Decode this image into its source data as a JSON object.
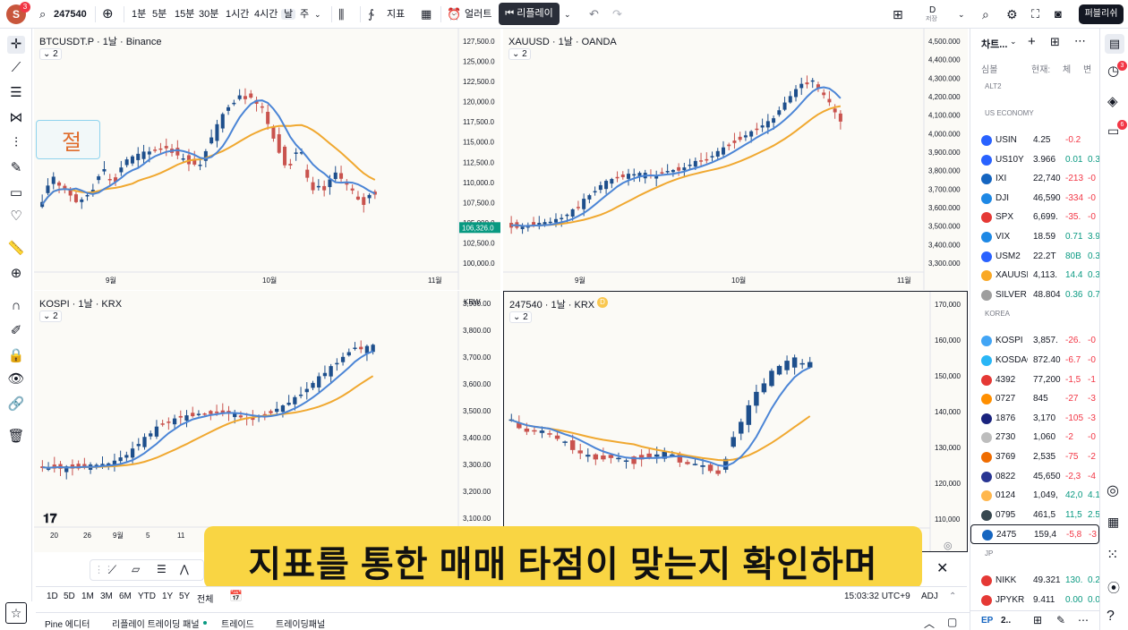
{
  "topbar": {
    "avatar_letter": "S",
    "avatar_badge": "3",
    "symbol": "247540",
    "intervals": [
      "1분",
      "5분",
      "15분",
      "30분",
      "1시간",
      "4시간",
      "날",
      "주"
    ],
    "active_interval": "날",
    "indicators_label": "지표",
    "alert_label": "얼러트",
    "replay_label": "리플레이",
    "layout_label": "D",
    "layout_sub": "저장",
    "publish_label": "퍼블리쉬"
  },
  "panes": [
    {
      "title": "BTCUSDT.P · 1날 · Binance",
      "badge": "2",
      "price_labels": [
        "127,500.0",
        "125,000.0",
        "122,500.0",
        "120,000.0",
        "117,500.0",
        "115,000.0",
        "112,500.0",
        "110,000.0",
        "107,500.0",
        "105,000.0",
        "102,500.0",
        "100,000.0"
      ],
      "last_price": "106,326.0",
      "time_labels": [
        "9월",
        "10월",
        "11월"
      ],
      "overlay_text": "절"
    },
    {
      "title": "XAUUSD · 1날 · OANDA",
      "badge": "2",
      "price_labels": [
        "4,500.000",
        "4,400.000",
        "4,300.000",
        "4,200.000",
        "4,100.000",
        "4,000.000",
        "3,900.000",
        "3,800.000",
        "3,700.000",
        "3,600.000",
        "3,500.000",
        "3,400.000",
        "3,300.000"
      ],
      "time_labels": [
        "9월",
        "10월",
        "11월"
      ]
    },
    {
      "title": "KOSPI · 1날 · KRX",
      "badge": "2",
      "currency": "KRW",
      "price_labels": [
        "3,900.00",
        "3,800.00",
        "3,700.00",
        "3,600.00",
        "3,500.00",
        "3,400.00",
        "3,300.00",
        "3,200.00",
        "3,100.00"
      ],
      "time_labels": [
        "20",
        "26",
        "9월",
        "5",
        "11"
      ]
    },
    {
      "title": "247540 · 1날 · KRX",
      "badge": "2",
      "price_labels": [
        "170,000",
        "160,000",
        "150,000",
        "140,000",
        "130,000",
        "120,000",
        "110,000"
      ]
    }
  ],
  "caption": "지표를 통한 매매 타점이 맞는지 확인하며",
  "range_bar": {
    "ranges": [
      "1D",
      "5D",
      "1M",
      "3M",
      "6M",
      "YTD",
      "1Y",
      "5Y",
      "전체"
    ],
    "clock": "15:03:32 UTC+9",
    "adj": "ADJ"
  },
  "panel_tabs": [
    "Pine 에디터",
    "리플레이 트레이딩 패널",
    "트레이드",
    "트레이딩패널"
  ],
  "watchlist": {
    "title": "차트...",
    "col_symbol": "심볼",
    "col_price": "현재:",
    "col_chg": "체",
    "col_pct": "변",
    "sections": [
      {
        "name": "ALT2",
        "rows": []
      },
      {
        "name": "US ECONOMY",
        "rows": [
          {
            "sym": "USIN",
            "price": "4.25",
            "chg": "-0.2",
            "pct": "",
            "color": "#2962ff",
            "dir": "down"
          },
          {
            "sym": "US10Y",
            "price": "3.966",
            "chg": "0.01",
            "pct": "0.3",
            "color": "#2962ff",
            "dir": "up"
          },
          {
            "sym": "IXI",
            "price": "22,740",
            "chg": "-213",
            "pct": "-0",
            "color": "#1565c0",
            "dir": "down"
          },
          {
            "sym": "DJI",
            "price": "46,590",
            "chg": "-334",
            "pct": "-0",
            "color": "#1e88e5",
            "dir": "down"
          },
          {
            "sym": "SPX",
            "price": "6,699.",
            "chg": "-35.",
            "pct": "-0",
            "color": "#e53935",
            "dir": "down"
          },
          {
            "sym": "VIX",
            "price": "18.59",
            "chg": "0.71",
            "pct": "3.9",
            "color": "#1e88e5",
            "dir": "up"
          },
          {
            "sym": "USM2",
            "price": "22.2T",
            "chg": "80B",
            "pct": "0.3",
            "color": "#2962ff",
            "dir": "up"
          },
          {
            "sym": "XAUUSD",
            "price": "4,113.",
            "chg": "14.4",
            "pct": "0.3",
            "color": "#f9a825",
            "dir": "up"
          },
          {
            "sym": "SILVER",
            "price": "48.804",
            "chg": "0.36",
            "pct": "0.7",
            "color": "#9e9e9e",
            "dir": "up"
          }
        ]
      },
      {
        "name": "KOREA",
        "rows": [
          {
            "sym": "KOSPI",
            "price": "3,857.",
            "chg": "-26.",
            "pct": "-0",
            "color": "#42a5f5",
            "dir": "down"
          },
          {
            "sym": "KOSDAQ",
            "price": "872.40",
            "chg": "-6.7",
            "pct": "-0",
            "color": "#29b6f6",
            "dir": "down"
          },
          {
            "sym": "4392",
            "price": "77,200",
            "chg": "-1,5",
            "pct": "-1",
            "color": "#e53935",
            "dir": "down"
          },
          {
            "sym": "0727",
            "price": "845",
            "chg": "-27",
            "pct": "-3",
            "color": "#ff8f00",
            "dir": "down"
          },
          {
            "sym": "1876",
            "price": "3,170",
            "chg": "-105",
            "pct": "-3",
            "color": "#1a237e",
            "dir": "down"
          },
          {
            "sym": "2730",
            "price": "1,060",
            "chg": "-2",
            "pct": "-0",
            "color": "#bdbdbd",
            "dir": "down"
          },
          {
            "sym": "3769",
            "price": "2,535",
            "chg": "-75",
            "pct": "-2",
            "color": "#ef6c00",
            "dir": "down"
          },
          {
            "sym": "0822",
            "price": "45,650",
            "chg": "-2,3",
            "pct": "-4",
            "color": "#283593",
            "dir": "down"
          },
          {
            "sym": "0124",
            "price": "1,049,",
            "chg": "42,0",
            "pct": "4.1",
            "color": "#ffb74d",
            "dir": "up"
          },
          {
            "sym": "0795",
            "price": "461,5",
            "chg": "11,5",
            "pct": "2.5",
            "color": "#37474f",
            "dir": "up"
          },
          {
            "sym": "2475",
            "price": "159,4",
            "chg": "-5,8",
            "pct": "-3",
            "color": "#1565c0",
            "dir": "down",
            "selected": true
          }
        ]
      },
      {
        "name": "JP",
        "rows": [
          {
            "sym": "NIKK",
            "price": "49.321",
            "chg": "130.",
            "pct": "0.2",
            "color": "#e53935",
            "dir": "up"
          },
          {
            "sym": "JPYKR",
            "price": "9.411",
            "chg": "0.00",
            "pct": "0.0",
            "color": "#e53935",
            "dir": "up"
          }
        ]
      }
    ]
  },
  "colors": {
    "up": "#089981",
    "down": "#f23645",
    "candle_up": "#1e4f8c",
    "candle_down": "#c9534e",
    "ma_fast": "#4b85d6",
    "ma_slow": "#f0a830",
    "bg_pane": "#fbfaf6",
    "caption_bg": "#f9d543"
  }
}
